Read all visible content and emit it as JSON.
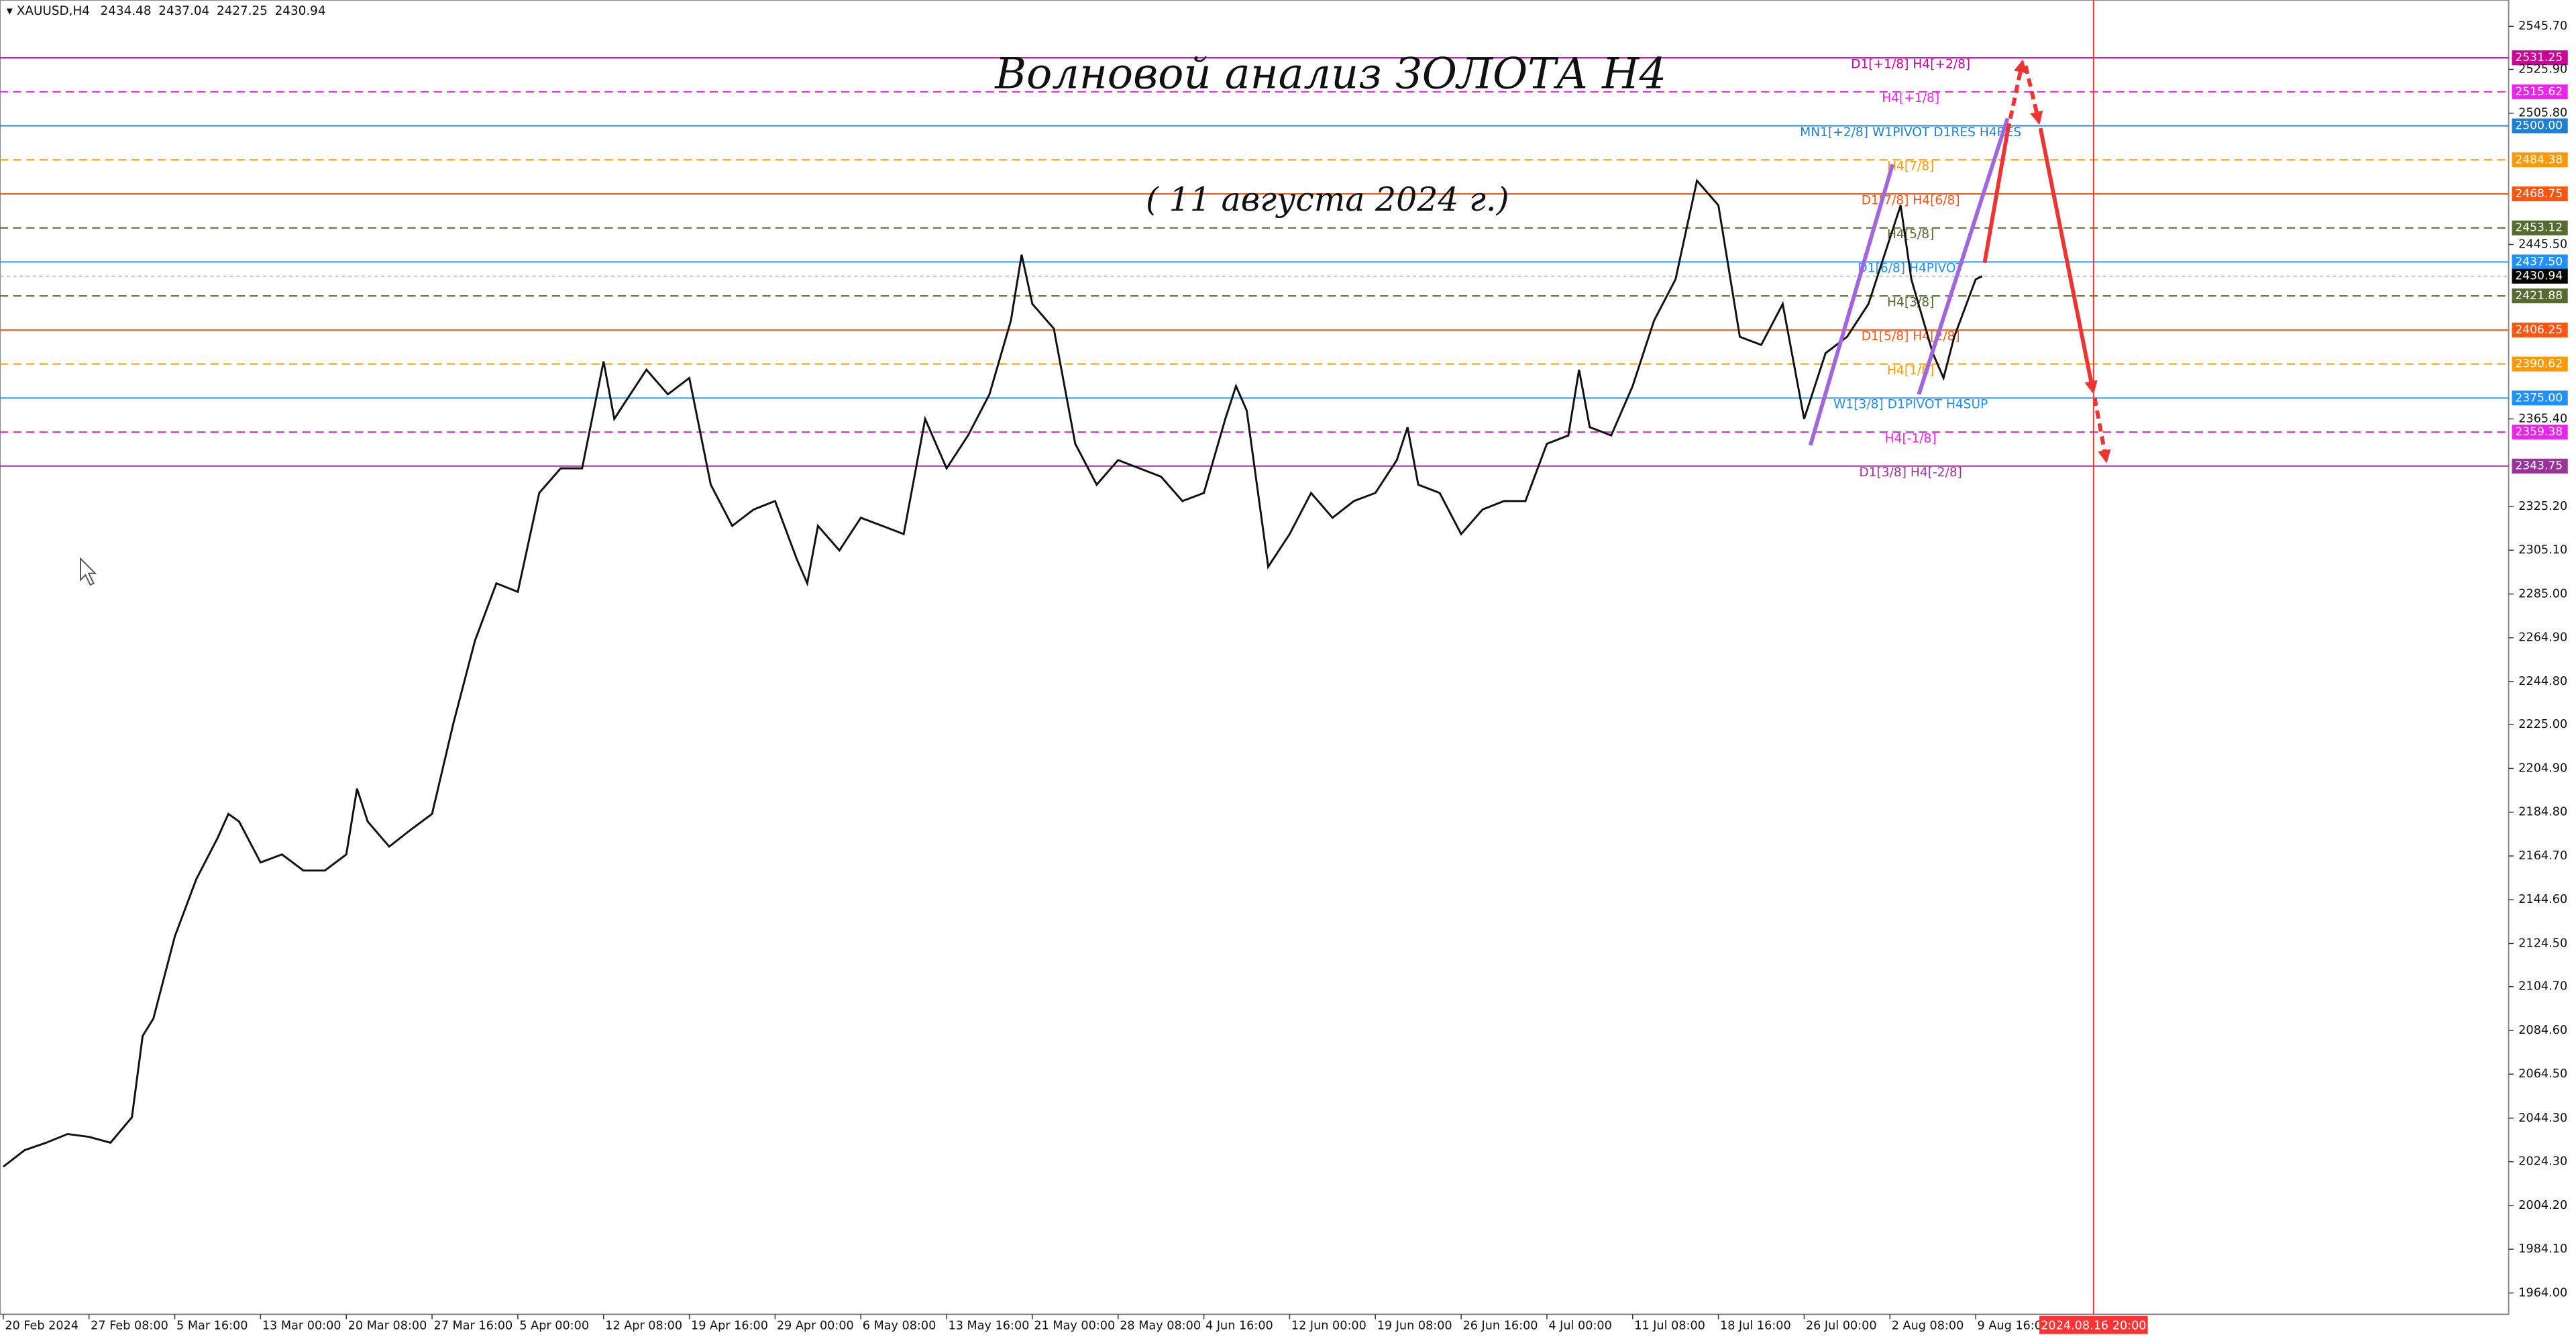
{
  "chart_data": {
    "type": "line",
    "title": "Волновой анализ ЗОЛОТА H4",
    "subtitle": "( 11 августа 2024 г.)",
    "ohlc": [
      2434.48,
      2437.04,
      2427.25,
      2430.94
    ],
    "x": [
      0,
      10,
      20,
      30,
      40,
      50,
      60,
      65,
      70,
      80,
      90,
      100,
      105,
      110,
      120,
      130,
      140,
      150,
      160,
      165,
      170,
      180,
      190,
      200,
      210,
      220,
      230,
      240,
      250,
      260,
      270,
      280,
      285,
      290,
      300,
      310,
      320,
      330,
      340,
      350,
      360,
      370,
      375,
      380,
      390,
      400,
      410,
      420,
      430,
      440,
      450,
      460,
      470,
      475,
      480,
      490,
      500,
      510,
      520,
      530,
      540,
      550,
      560,
      570,
      575,
      580,
      590,
      600,
      610,
      620,
      630,
      640,
      650,
      655,
      660,
      670,
      680,
      690,
      700,
      710,
      720,
      730,
      735,
      740,
      750,
      760,
      770,
      780,
      790,
      800,
      810,
      820,
      830,
      840,
      850,
      860,
      870,
      880,
      885,
      890,
      900,
      905,
      910,
      920,
      923
    ],
    "series": [
      {
        "name": "XAUUSD,H4",
        "color": "#111111",
        "values": [
          2022,
          2029.6,
          2033,
          2037,
          2035.7,
          2033,
          2044.7,
          2082,
          2090,
          2127.7,
          2154,
          2173,
          2184,
          2180.5,
          2161.7,
          2165.4,
          2158,
          2158,
          2165.4,
          2195.6,
          2180.5,
          2169,
          2176.7,
          2184,
          2225.8,
          2263.5,
          2289.9,
          2286,
          2331.4,
          2342.7,
          2342.7,
          2391.8,
          2365.4,
          2373,
          2388,
          2376.7,
          2384.2,
          2335.2,
          2316.3,
          2323.8,
          2327.7,
          2301.3,
          2289.9,
          2316.3,
          2305,
          2320,
          2316.3,
          2312.5,
          2365.4,
          2342.7,
          2357.8,
          2376.7,
          2410.6,
          2440.8,
          2418.2,
          2406.9,
          2354,
          2335.2,
          2346.5,
          2342.7,
          2338.9,
          2327.7,
          2331.4,
          2365.4,
          2380.5,
          2369.2,
          2297.5,
          2312.5,
          2331.4,
          2320,
          2327.7,
          2331.4,
          2346.5,
          2361.6,
          2335.2,
          2331.4,
          2312.5,
          2323.8,
          2327.7,
          2327.7,
          2354,
          2357.8,
          2388,
          2361.6,
          2357.8,
          2380.5,
          2410.6,
          2429.5,
          2474.8,
          2463.5,
          2403.1,
          2399.4,
          2418.2,
          2365.4,
          2395.6,
          2403.1,
          2418.2,
          2448.4,
          2463.5,
          2429.5,
          2395.6,
          2384.2,
          2403.1,
          2429.5,
          2430.94
        ]
      }
    ],
    "xlim": [
      -1.53,
      1168.6
    ],
    "ylim": [
      1954.2,
      2557.77
    ],
    "xticks": [
      {
        "value": 0,
        "label": "20 Feb 2024"
      },
      {
        "value": 40,
        "label": "27 Feb 08:00"
      },
      {
        "value": 80,
        "label": "5 Mar 16:00"
      },
      {
        "value": 120,
        "label": "13 Mar 00:00"
      },
      {
        "value": 160,
        "label": "20 Mar 08:00"
      },
      {
        "value": 200,
        "label": "27 Mar 16:00"
      },
      {
        "value": 240,
        "label": "5 Apr 00:00"
      },
      {
        "value": 280,
        "label": "12 Apr 08:00"
      },
      {
        "value": 320,
        "label": "19 Apr 16:00"
      },
      {
        "value": 360,
        "label": "29 Apr 00:00"
      },
      {
        "value": 400,
        "label": "6 May 08:00"
      },
      {
        "value": 440,
        "label": "13 May 16:00"
      },
      {
        "value": 480,
        "label": "21 May 00:00"
      },
      {
        "value": 520,
        "label": "28 May 08:00"
      },
      {
        "value": 560,
        "label": "4 Jun 16:00"
      },
      {
        "value": 600,
        "label": "12 Jun 00:00"
      },
      {
        "value": 640,
        "label": "19 Jun 08:00"
      },
      {
        "value": 680,
        "label": "26 Jun 16:00"
      },
      {
        "value": 720,
        "label": "4 Jul 00:00"
      },
      {
        "value": 760,
        "label": "11 Jul 08:00"
      },
      {
        "value": 800,
        "label": "18 Jul 16:00"
      },
      {
        "value": 840,
        "label": "26 Jul 00:00"
      },
      {
        "value": 880,
        "label": "2 Aug 08:00"
      },
      {
        "value": 920,
        "label": "9 Aug 16:00"
      }
    ],
    "cursor": {
      "value": 975,
      "label": "2024.08.16 20:00",
      "color": "#ff3333"
    },
    "yticks": [
      {
        "value": 2545.7,
        "label": "2545.70"
      },
      {
        "value": 2525.9,
        "label": "2525.90"
      },
      {
        "value": 2505.8,
        "label": "2505.80"
      },
      {
        "value": 2445.5,
        "label": "2445.50"
      },
      {
        "value": 2365.4,
        "label": "2365.40"
      },
      {
        "value": 2325.2,
        "label": "2325.20"
      },
      {
        "value": 2305.1,
        "label": "2305.10"
      },
      {
        "value": 2285,
        "label": "2285.00"
      },
      {
        "value": 2264.9,
        "label": "2264.90"
      },
      {
        "value": 2244.8,
        "label": "2244.80"
      },
      {
        "value": 2225,
        "label": "2225.00"
      },
      {
        "value": 2204.9,
        "label": "2204.90"
      },
      {
        "value": 2184.8,
        "label": "2184.80"
      },
      {
        "value": 2164.7,
        "label": "2164.70"
      },
      {
        "value": 2144.6,
        "label": "2144.60"
      },
      {
        "value": 2124.5,
        "label": "2124.50"
      },
      {
        "value": 2104.7,
        "label": "2104.70"
      },
      {
        "value": 2084.6,
        "label": "2084.60"
      },
      {
        "value": 2064.5,
        "label": "2064.50"
      },
      {
        "value": 2044.3,
        "label": "2044.30"
      },
      {
        "value": 2024.3,
        "label": "2024.30"
      },
      {
        "value": 2004.2,
        "label": "2004.20"
      },
      {
        "value": 1984.1,
        "label": "1984.10"
      },
      {
        "value": 1964,
        "label": "1964.00"
      }
    ],
    "levels": [
      {
        "value": 2531.25,
        "price_label": "2531.25",
        "text": "D1[+1/8] H4[+2/8]",
        "color": "#cc0099",
        "dashed": false
      },
      {
        "value": 2515.62,
        "price_label": "2515.62",
        "text": "H4[+1/8]",
        "color": "#ee22ee",
        "dashed": true
      },
      {
        "value": 2500,
        "price_label": "2500.00",
        "text": "MN1[+2/8] W1PIVOT D1RES H4RES",
        "color": "#1e7fd0",
        "dashed": false
      },
      {
        "value": 2484.38,
        "price_label": "2484.38",
        "text": "H4[7/8]",
        "color": "#ff9900",
        "dashed": true
      },
      {
        "value": 2468.75,
        "price_label": "2468.75",
        "text": "D1[7/8] H4[6/8]",
        "color": "#ff5511",
        "dashed": false
      },
      {
        "value": 2453.12,
        "price_label": "2453.12",
        "text": "H4[5/8]",
        "color": "#556b2f",
        "dashed": true
      },
      {
        "value": 2437.5,
        "price_label": "2437.50",
        "text": "D1[6/8] H4PIVOT",
        "color": "#1e90ff",
        "dashed": false
      },
      {
        "value": 2421.88,
        "price_label": "2421.88",
        "text": "H4[3/8]",
        "color": "#556b2f",
        "dashed": true
      },
      {
        "value": 2406.25,
        "price_label": "2406.25",
        "text": "D1[5/8] H4[2/8]",
        "color": "#ff5511",
        "dashed": false
      },
      {
        "value": 2390.62,
        "price_label": "2390.62",
        "text": "H4[1/8]",
        "color": "#ff9900",
        "dashed": true
      },
      {
        "value": 2375,
        "price_label": "2375.00",
        "text": "W1[3/8] D1PIVOT H4SUP",
        "color": "#1e90ff",
        "dashed": false
      },
      {
        "value": 2359.38,
        "price_label": "2359.38",
        "text": "H4[-1/8]",
        "color": "#ee22ee",
        "dashed": true
      },
      {
        "value": 2343.75,
        "price_label": "2343.75",
        "text": "D1[3/8] H4[-2/8]",
        "color": "#993399",
        "dashed": false
      }
    ]
  }
}
